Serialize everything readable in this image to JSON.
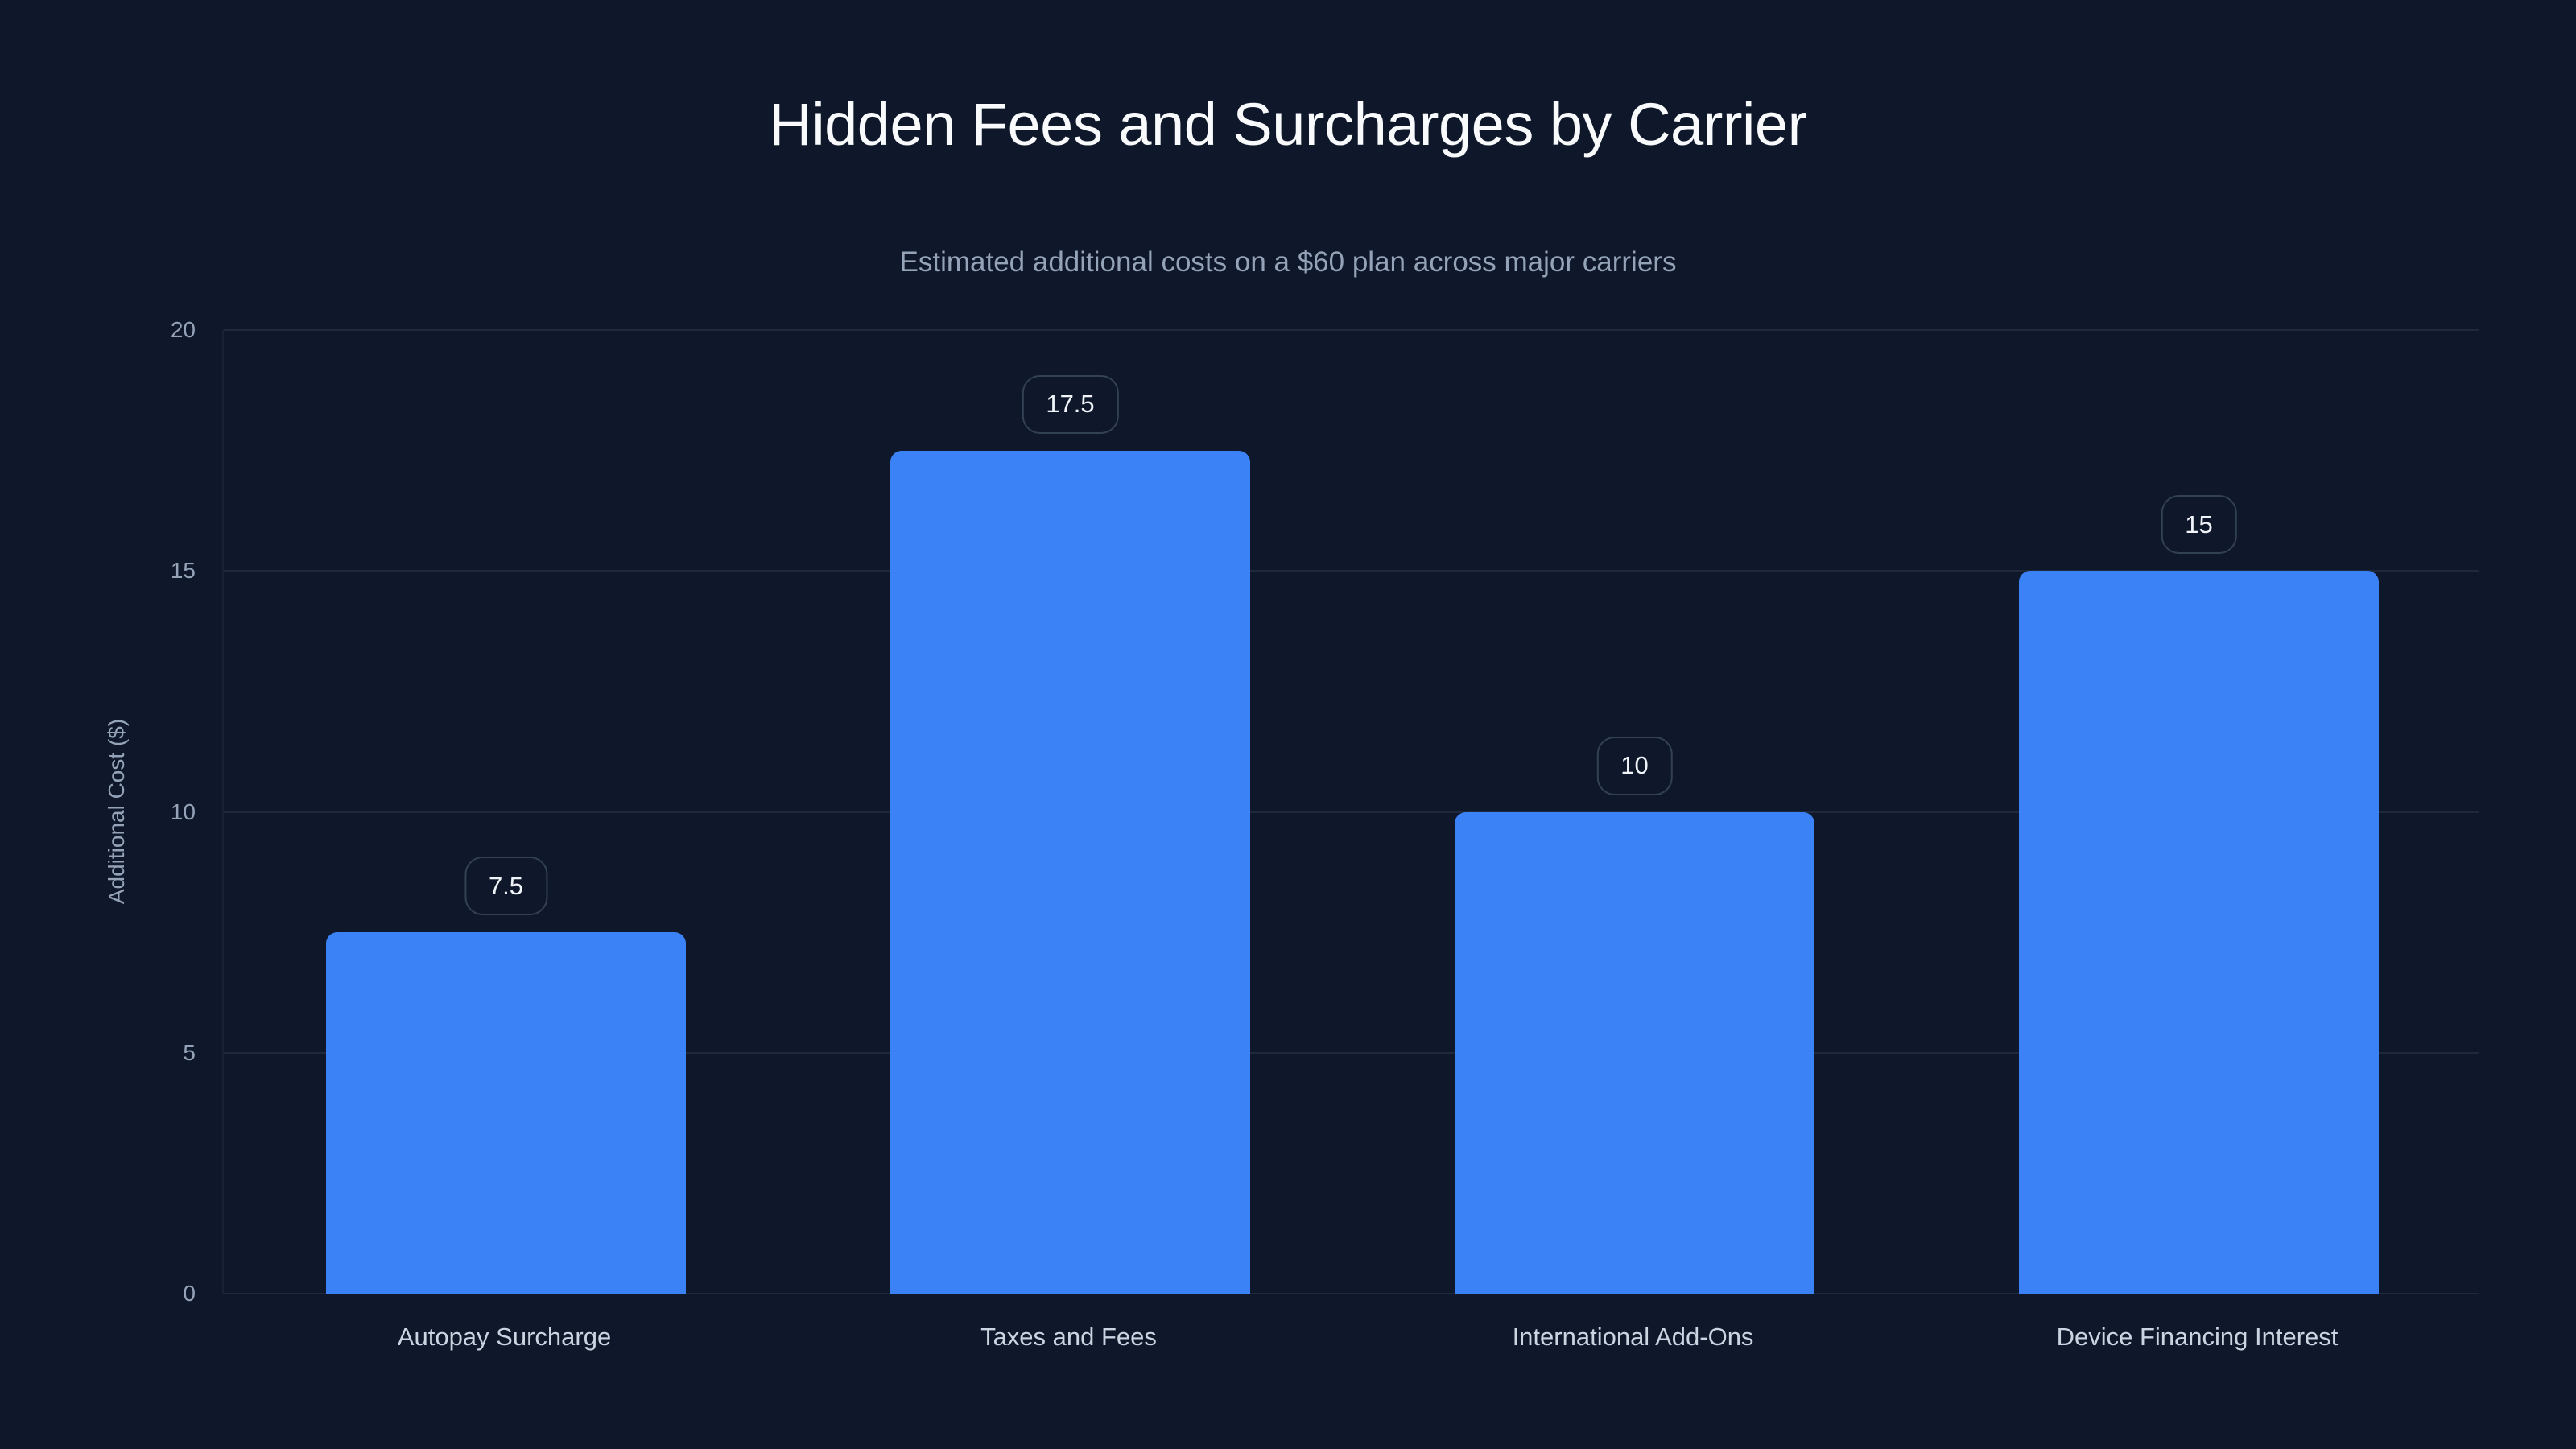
{
  "title": "Hidden Fees and Surcharges by Carrier",
  "subtitle": "Estimated additional costs on a $60 plan across major carriers",
  "colors": {
    "background": "#0f172a",
    "bar": "#3b82f6",
    "grid": "#1e293b",
    "label_border": "#334155",
    "tick_text": "#94a3b8",
    "category_text": "#cbd5e1"
  },
  "axis": {
    "ylabel": "Additional Cost ($)",
    "yticks": [
      "0",
      "5",
      "10",
      "15",
      "20"
    ]
  },
  "chart_data": {
    "type": "bar",
    "title": "Hidden Fees and Surcharges by Carrier",
    "subtitle": "Estimated additional costs on a $60 plan across major carriers",
    "categories": [
      "Autopay Surcharge",
      "Taxes and Fees",
      "International Add-Ons",
      "Device Financing Interest"
    ],
    "values": [
      7.5,
      17.5,
      10,
      15
    ],
    "value_labels": [
      "7.5",
      "17.5",
      "10",
      "15"
    ],
    "xlabel": "",
    "ylabel": "Additional Cost ($)",
    "ylim": [
      0,
      20
    ],
    "yticks": [
      0,
      5,
      10,
      15,
      20
    ],
    "grid": true,
    "legend": null
  }
}
